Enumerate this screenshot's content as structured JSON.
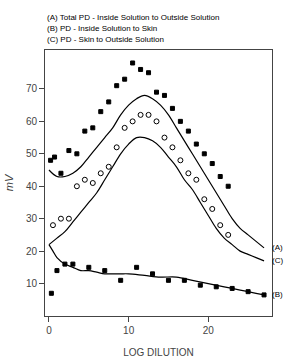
{
  "chart_data": {
    "type": "line",
    "xlabel": "LOG DILUTION",
    "ylabel": "mV",
    "xlim": [
      -0.5,
      28
    ],
    "ylim": [
      0,
      82
    ],
    "xticks": [
      0,
      10,
      20
    ],
    "yticks": [
      10,
      20,
      30,
      40,
      50,
      60,
      70
    ],
    "grid": false,
    "series": [
      {
        "type": "line",
        "line_style": "smooth",
        "color": "#000000",
        "x": [
          0,
          1,
          2,
          3,
          4,
          5,
          6,
          7,
          8,
          9,
          10,
          11,
          12,
          13,
          14,
          15,
          16,
          17,
          18,
          19,
          20,
          21,
          22,
          23,
          24,
          25,
          26,
          27
        ],
        "values": [
          45,
          43,
          43,
          44,
          46,
          49,
          52,
          55,
          58,
          62,
          65,
          67,
          68,
          67,
          65,
          62,
          58,
          54,
          50,
          46,
          42,
          38,
          34,
          30,
          27,
          25,
          23,
          21
        ]
      },
      {
        "type": "scatter",
        "marker": "square",
        "color": "#000000",
        "x": [
          0.2,
          0.7,
          1.5,
          2.5,
          3.5,
          4.5,
          5.5,
          6.5,
          7.5,
          8.5,
          9.5,
          10.5,
          11.5,
          12.5,
          13.5,
          14.5,
          15.5,
          16.5,
          17.5,
          18.5,
          19.5,
          20.5,
          21.5,
          22.5
        ],
        "values": [
          48,
          49,
          44,
          51,
          50,
          57,
          58,
          63,
          66,
          71,
          73,
          78,
          76,
          75,
          69,
          68,
          64,
          60,
          57,
          53,
          50,
          47,
          43,
          40
        ]
      },
      {
        "type": "line",
        "line_style": "smooth",
        "color": "#000000",
        "x": [
          0,
          0.5,
          1,
          2,
          3,
          4,
          5,
          6,
          7,
          8,
          9,
          10,
          12,
          14,
          16,
          18,
          20,
          22,
          24,
          26,
          27
        ],
        "values": [
          22,
          20,
          18,
          16,
          15,
          14,
          14,
          13.5,
          13,
          13,
          13,
          13,
          12.5,
          12,
          12,
          11,
          10,
          9,
          8,
          7,
          6.5
        ]
      },
      {
        "type": "scatter",
        "marker": "square",
        "color": "#000000",
        "x": [
          0.3,
          1,
          2,
          3,
          5,
          7,
          9,
          11,
          13,
          15,
          17,
          19,
          21,
          23,
          25,
          27
        ],
        "values": [
          7,
          14,
          16,
          16,
          15,
          14,
          11,
          15,
          13,
          11,
          11,
          9.5,
          9,
          8.5,
          7.5,
          6.5
        ]
      },
      {
        "type": "line",
        "line_style": "smooth",
        "color": "#000000",
        "x": [
          0,
          1,
          2,
          3,
          4,
          5,
          6,
          7,
          8,
          9,
          10,
          11,
          12,
          13,
          14,
          15,
          16,
          17,
          18,
          19,
          20,
          21,
          22,
          23,
          24,
          25,
          26,
          27
        ],
        "values": [
          22,
          24,
          26,
          29,
          32,
          35,
          38,
          42,
          46,
          50,
          53,
          55,
          55,
          54,
          52,
          49,
          46,
          42,
          39,
          35,
          31,
          27,
          24,
          22,
          20,
          19,
          18,
          17
        ]
      },
      {
        "type": "scatter",
        "marker": "open_circle",
        "color": "#000000",
        "x": [
          0.5,
          1.5,
          2.5,
          3.5,
          4.5,
          5.5,
          6.5,
          7.5,
          8.5,
          9.5,
          10.5,
          11.5,
          12.5,
          13.5,
          14.5,
          15.5,
          16.5,
          17.5,
          18.5,
          19.5,
          20.5,
          21.5,
          22.5
        ],
        "values": [
          28,
          30,
          30,
          40,
          42,
          41,
          44,
          46,
          52,
          58,
          60,
          62,
          62,
          60,
          55,
          52,
          48,
          44,
          42,
          36,
          33,
          28,
          25
        ]
      }
    ],
    "annotations": [
      {
        "text": "(A)",
        "x": 27.5,
        "y": 21
      },
      {
        "text": "(C)",
        "x": 27.5,
        "y": 17
      },
      {
        "text": "(B)",
        "x": 27.5,
        "y": 6.5
      },
      {
        "text": "(A) Total PD - Inside Solution to Outside Solution"
      },
      {
        "text": "(B) PD - Inside Solution to Skin"
      },
      {
        "text": "(C) PD - Skin to Outside Solution"
      }
    ]
  }
}
